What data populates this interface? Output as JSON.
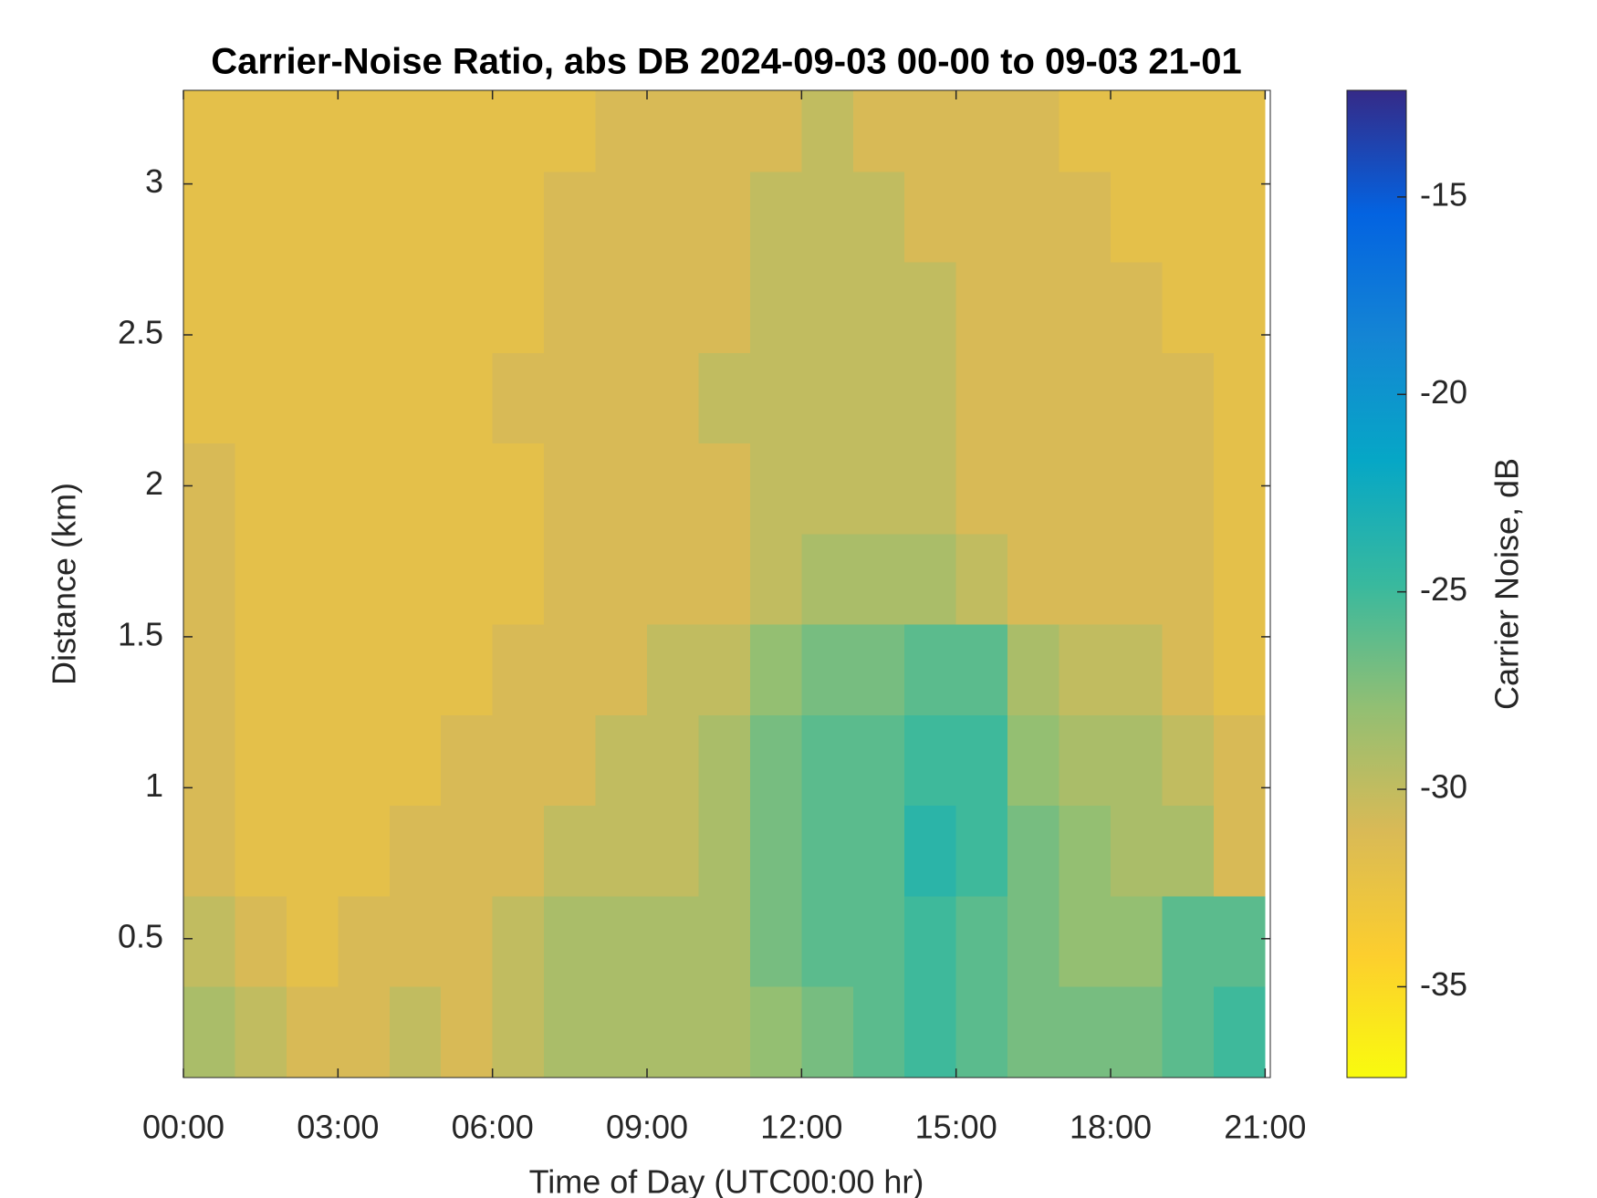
{
  "chart_data": {
    "type": "heatmap",
    "title": "Carrier-Noise Ratio, abs DB 2024-09-03 00-00 to 09-03 21-01",
    "xlabel": "Time of Day (UTC00:00 hr)",
    "ylabel": "Distance (km)",
    "colorbar_label": "Carrier Noise, dB",
    "x": [
      0.5,
      1.5,
      2.5,
      3.5,
      4.5,
      5.5,
      6.5,
      7.5,
      8.5,
      9.5,
      10.5,
      11.5,
      12.5,
      13.5,
      14.5,
      15.5,
      16.5,
      17.5,
      18.5,
      19.5,
      20.5
    ],
    "y": [
      0.19,
      0.49,
      0.79,
      1.09,
      1.39,
      1.69,
      1.99,
      2.29,
      2.59,
      2.89,
      3.19
    ],
    "values": [
      [
        -29,
        -30,
        -31,
        -31,
        -30,
        -31,
        -30,
        -29,
        -29,
        -29,
        -29,
        -28,
        -27,
        -26,
        -25,
        -26,
        -27,
        -27,
        -27,
        -26,
        -25
      ],
      [
        -30,
        -31,
        -32,
        -31,
        -31,
        -31,
        -30,
        -29,
        -29,
        -29,
        -29,
        -27,
        -26,
        -26,
        -25,
        -26,
        -27,
        -28,
        -28,
        -26,
        -26
      ],
      [
        -31,
        -32,
        -32,
        -32,
        -31,
        -31,
        -31,
        -30,
        -30,
        -30,
        -29,
        -27,
        -26,
        -26,
        -24,
        -25,
        -27,
        -28,
        -29,
        -29,
        -31
      ],
      [
        -31,
        -32,
        -32,
        -32,
        -32,
        -31,
        -31,
        -31,
        -30,
        -30,
        -29,
        -27,
        -26,
        -26,
        -25,
        -25,
        -28,
        -29,
        -29,
        -30,
        -31
      ],
      [
        -31,
        -32,
        -32,
        -32,
        -32,
        -32,
        -31,
        -31,
        -31,
        -30,
        -30,
        -28,
        -27,
        -27,
        -26,
        -26,
        -29,
        -30,
        -30,
        -31,
        -32
      ],
      [
        -31,
        -32,
        -32,
        -32,
        -32,
        -32,
        -32,
        -31,
        -31,
        -31,
        -31,
        -30,
        -29,
        -29,
        -29,
        -30,
        -31,
        -31,
        -31,
        -31,
        -32
      ],
      [
        -31,
        -32,
        -32,
        -32,
        -32,
        -32,
        -32,
        -31,
        -31,
        -31,
        -31,
        -30,
        -30,
        -30,
        -30,
        -31,
        -31,
        -31,
        -31,
        -31,
        -32
      ],
      [
        -32,
        -32,
        -32,
        -32,
        -32,
        -32,
        -31,
        -31,
        -31,
        -31,
        -30,
        -30,
        -30,
        -30,
        -30,
        -31,
        -31,
        -31,
        -31,
        -31,
        -32
      ],
      [
        -32,
        -32,
        -32,
        -32,
        -32,
        -32,
        -32,
        -31,
        -31,
        -31,
        -31,
        -30,
        -30,
        -30,
        -30,
        -31,
        -31,
        -31,
        -31,
        -32,
        -32
      ],
      [
        -32,
        -32,
        -32,
        -32,
        -32,
        -32,
        -32,
        -31,
        -31,
        -31,
        -31,
        -30,
        -30,
        -30,
        -31,
        -31,
        -31,
        -31,
        -32,
        -32,
        -32
      ],
      [
        -32,
        -32,
        -32,
        -32,
        -32,
        -32,
        -32,
        -32,
        -31,
        -31,
        -31,
        -31,
        -30,
        -31,
        -31,
        -31,
        -31,
        -32,
        -32,
        -32,
        -32
      ]
    ],
    "xlim": [
      0,
      21.1
    ],
    "ylim": [
      0.04,
      3.31
    ],
    "xticks": [
      {
        "value": 0,
        "label": "00:00"
      },
      {
        "value": 3,
        "label": "03:00"
      },
      {
        "value": 6,
        "label": "06:00"
      },
      {
        "value": 9,
        "label": "09:00"
      },
      {
        "value": 12,
        "label": "12:00"
      },
      {
        "value": 15,
        "label": "15:00"
      },
      {
        "value": 18,
        "label": "18:00"
      },
      {
        "value": 21,
        "label": "21:00"
      }
    ],
    "yticks": [
      0.5,
      1,
      1.5,
      2,
      2.5,
      3
    ],
    "clim": [
      -37.3,
      -12.3
    ],
    "cticks": [
      -35,
      -30,
      -25,
      -20,
      -15
    ],
    "colormap": [
      "#f9fb0e",
      "#fcce2e",
      "#d9ba56",
      "#92bf73",
      "#38b99e",
      "#06a7c6",
      "#1485d4",
      "#0363e1",
      "#352a87"
    ]
  }
}
